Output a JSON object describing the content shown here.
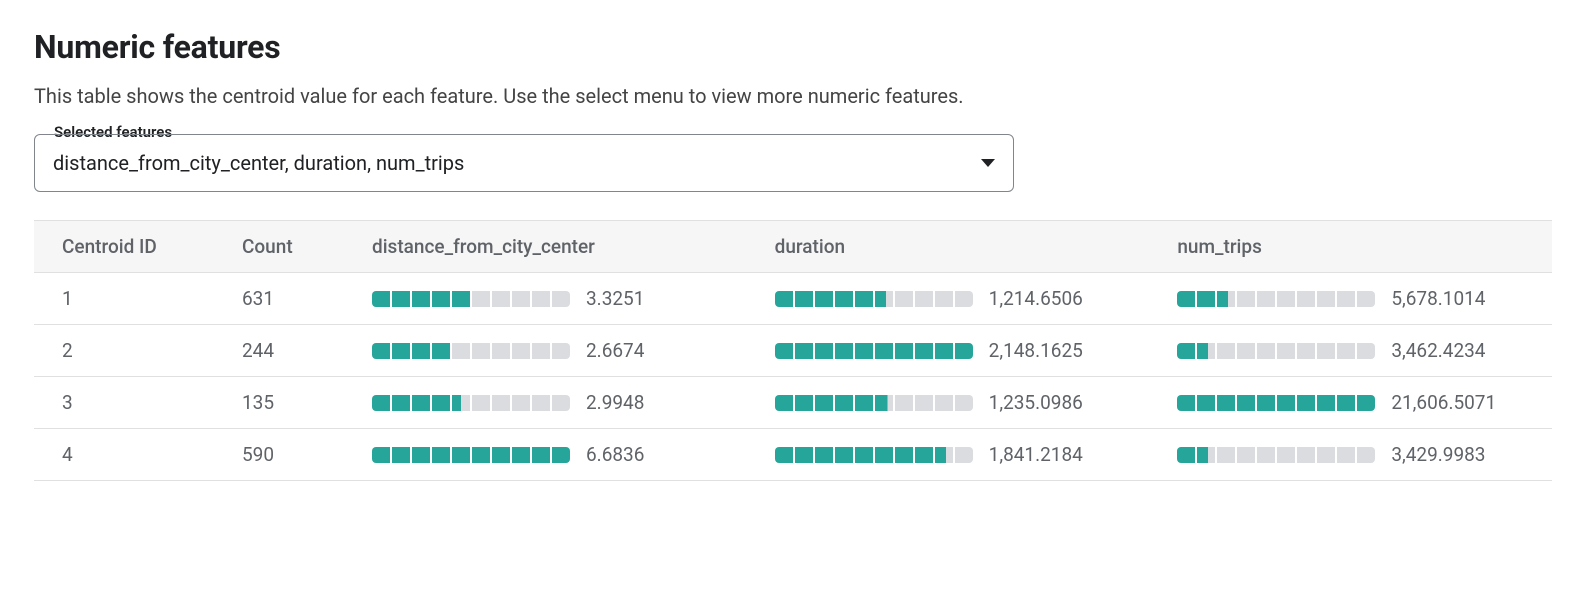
{
  "title": "Numeric features",
  "subtitle": "This table shows the centroid value for each feature. Use the select menu to view more numeric features.",
  "select": {
    "label": "Selected features",
    "value": "distance_from_city_center, duration, num_trips"
  },
  "table": {
    "columns": {
      "id": "Centroid ID",
      "count": "Count",
      "features": [
        "distance_from_city_center",
        "duration",
        "num_trips"
      ]
    },
    "bar": {
      "segments": 10,
      "fill_color": "#26a69a",
      "empty_color": "#dadce0"
    },
    "rows": [
      {
        "id": "1",
        "count": "631",
        "features": [
          {
            "value": "3.3251",
            "fill_ratio": 0.5
          },
          {
            "value": "1,214.6506",
            "fill_ratio": 0.56
          },
          {
            "value": "5,678.1014",
            "fill_ratio": 0.26
          }
        ]
      },
      {
        "id": "2",
        "count": "244",
        "features": [
          {
            "value": "2.6674",
            "fill_ratio": 0.4
          },
          {
            "value": "2,148.1625",
            "fill_ratio": 1.0
          },
          {
            "value": "3,462.4234",
            "fill_ratio": 0.16
          }
        ]
      },
      {
        "id": "3",
        "count": "135",
        "features": [
          {
            "value": "2.9948",
            "fill_ratio": 0.45
          },
          {
            "value": "1,235.0986",
            "fill_ratio": 0.57
          },
          {
            "value": "21,606.5071",
            "fill_ratio": 1.0
          }
        ]
      },
      {
        "id": "4",
        "count": "590",
        "features": [
          {
            "value": "6.6836",
            "fill_ratio": 1.0
          },
          {
            "value": "1,841.2184",
            "fill_ratio": 0.86
          },
          {
            "value": "3,429.9983",
            "fill_ratio": 0.16
          }
        ]
      }
    ]
  }
}
